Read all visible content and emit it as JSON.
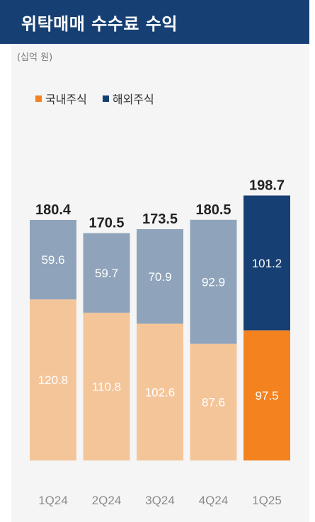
{
  "header": {
    "title": "위탁매매 수수료 수익",
    "unit": "(십억 원)"
  },
  "legend": [
    {
      "label": "국내주식",
      "color": "#f4821f"
    },
    {
      "label": "해외주식",
      "color": "#163f73"
    }
  ],
  "colors": {
    "header_bg": "#163f73",
    "panel_bg": "#f5f5f5",
    "domestic_muted": "#f5c59a",
    "overseas_muted": "#8fa4bb",
    "domestic_highlight": "#f4821f",
    "overseas_highlight": "#163f73"
  },
  "chart_data": {
    "type": "bar",
    "stacked": true,
    "categories": [
      "1Q24",
      "2Q24",
      "3Q24",
      "4Q24",
      "1Q25"
    ],
    "series": [
      {
        "name": "국내주식",
        "values": [
          120.8,
          110.8,
          102.6,
          87.6,
          97.5
        ]
      },
      {
        "name": "해외주식",
        "values": [
          59.6,
          59.7,
          70.9,
          92.9,
          101.2
        ]
      }
    ],
    "totals": [
      "180.4",
      "170.5",
      "173.5",
      "180.5",
      "198.7"
    ],
    "highlight_index": 4,
    "ylim": [
      0,
      200
    ],
    "grid": false,
    "legend_position": "top-left"
  }
}
